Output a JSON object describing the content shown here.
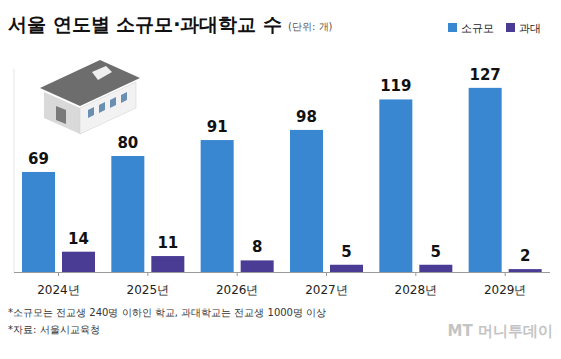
{
  "chart_data": {
    "type": "bar",
    "title": "서울 연도별 소규모·과대학교 수",
    "subtitle": "(단위: 개)",
    "categories": [
      "2024년",
      "2025년",
      "2026년",
      "2027년",
      "2028년",
      "2029년"
    ],
    "series": [
      {
        "name": "소규모",
        "color": "#3a87d1",
        "values": [
          69,
          80,
          91,
          98,
          119,
          127
        ]
      },
      {
        "name": "과대",
        "color": "#4a3b94",
        "values": [
          14,
          11,
          8,
          5,
          5,
          2
        ]
      }
    ],
    "ylim": [
      0,
      140
    ],
    "data_labels": true,
    "tick_labels": "x",
    "legend": "top-right",
    "notes": [
      "*소규모는 전교생 240명 이하인 학교, 과대학교는 전교생 1000명 이상",
      "*자료: 서울시교육청"
    ],
    "logo": "MT 머니투데이"
  }
}
